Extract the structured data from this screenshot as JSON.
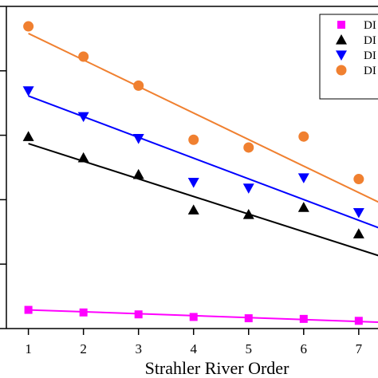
{
  "chart_data": {
    "type": "scatter",
    "xlabel": "Strahler River Order",
    "ylabel": "",
    "x_ticks": [
      "1",
      "2",
      "3",
      "4",
      "5",
      "6",
      "7"
    ],
    "xlim": [
      0.6,
      7.35
    ],
    "ylim": [
      0,
      5
    ],
    "y_tick_count": 6,
    "grid": false,
    "legend_position": "top-right",
    "series": [
      {
        "name": "DI",
        "marker": "square",
        "color": "#ff00ff",
        "x": [
          1,
          2,
          3,
          4,
          5,
          6,
          7
        ],
        "y": [
          0.29,
          0.25,
          0.22,
          0.18,
          0.16,
          0.15,
          0.12
        ],
        "trend": [
          0.29,
          0.11
        ]
      },
      {
        "name": "DI",
        "marker": "triangle-up",
        "color": "#000000",
        "x": [
          1,
          2,
          3,
          4,
          5,
          6,
          7
        ],
        "y": [
          2.98,
          2.65,
          2.39,
          1.84,
          1.77,
          1.88,
          1.47
        ],
        "trend": [
          2.87,
          1.23
        ]
      },
      {
        "name": "DI",
        "marker": "triangle-down",
        "color": "#0000ff",
        "x": [
          1,
          2,
          3,
          4,
          5,
          6,
          7
        ],
        "y": [
          3.69,
          3.29,
          2.95,
          2.27,
          2.18,
          2.34,
          1.8
        ],
        "trend": [
          3.61,
          1.68
        ]
      },
      {
        "name": "DI",
        "marker": "circle",
        "color": "#f08030",
        "x": [
          1,
          2,
          3,
          4,
          5,
          6,
          7
        ],
        "y": [
          4.69,
          4.22,
          3.77,
          2.93,
          2.81,
          2.98,
          2.32
        ],
        "trend": [
          4.58,
          2.11
        ]
      }
    ]
  }
}
